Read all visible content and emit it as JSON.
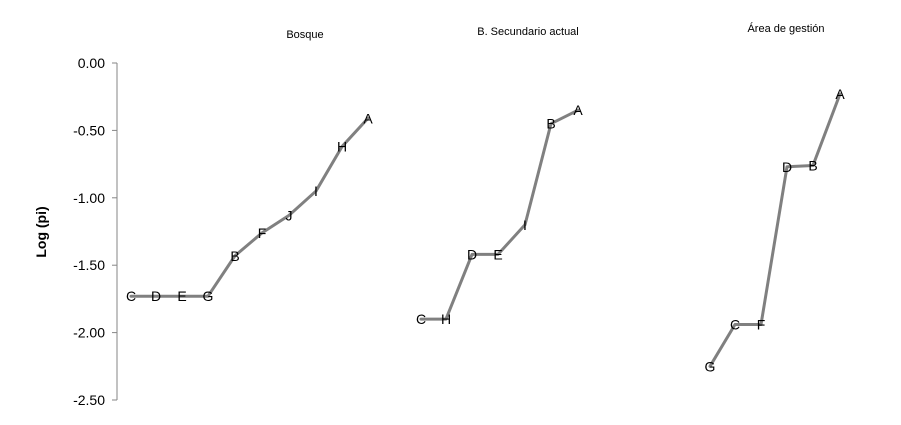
{
  "chart_data": {
    "type": "line",
    "ylabel": "Log (pi)",
    "ylim": [
      -2.5,
      0
    ],
    "yticks": [
      "0.00",
      "-0.50",
      "-1.00",
      "-1.50",
      "-2.00",
      "-2.50"
    ],
    "grid": false,
    "series": [
      {
        "name": "Bosque",
        "points": [
          {
            "label": "C",
            "y": -1.73
          },
          {
            "label": "D",
            "y": -1.73
          },
          {
            "label": "E",
            "y": -1.73
          },
          {
            "label": "G",
            "y": -1.73
          },
          {
            "label": "B",
            "y": -1.43
          },
          {
            "label": "F",
            "y": -1.26
          },
          {
            "label": "J",
            "y": -1.13
          },
          {
            "label": "I",
            "y": -0.95
          },
          {
            "label": "H",
            "y": -0.62
          },
          {
            "label": "A",
            "y": -0.41
          }
        ]
      },
      {
        "name": "B. Secundario actual",
        "points": [
          {
            "label": "C",
            "y": -1.9
          },
          {
            "label": "H",
            "y": -1.9
          },
          {
            "label": "D",
            "y": -1.42
          },
          {
            "label": "E",
            "y": -1.42
          },
          {
            "label": "I",
            "y": -1.2
          },
          {
            "label": "B",
            "y": -0.45
          },
          {
            "label": "A",
            "y": -0.35
          }
        ]
      },
      {
        "name": "Área de gestión",
        "points": [
          {
            "label": "G",
            "y": -2.25
          },
          {
            "label": "C",
            "y": -1.94
          },
          {
            "label": "F",
            "y": -1.94
          },
          {
            "label": "D",
            "y": -0.77
          },
          {
            "label": "B",
            "y": -0.76
          },
          {
            "label": "A",
            "y": -0.23
          }
        ]
      }
    ]
  }
}
